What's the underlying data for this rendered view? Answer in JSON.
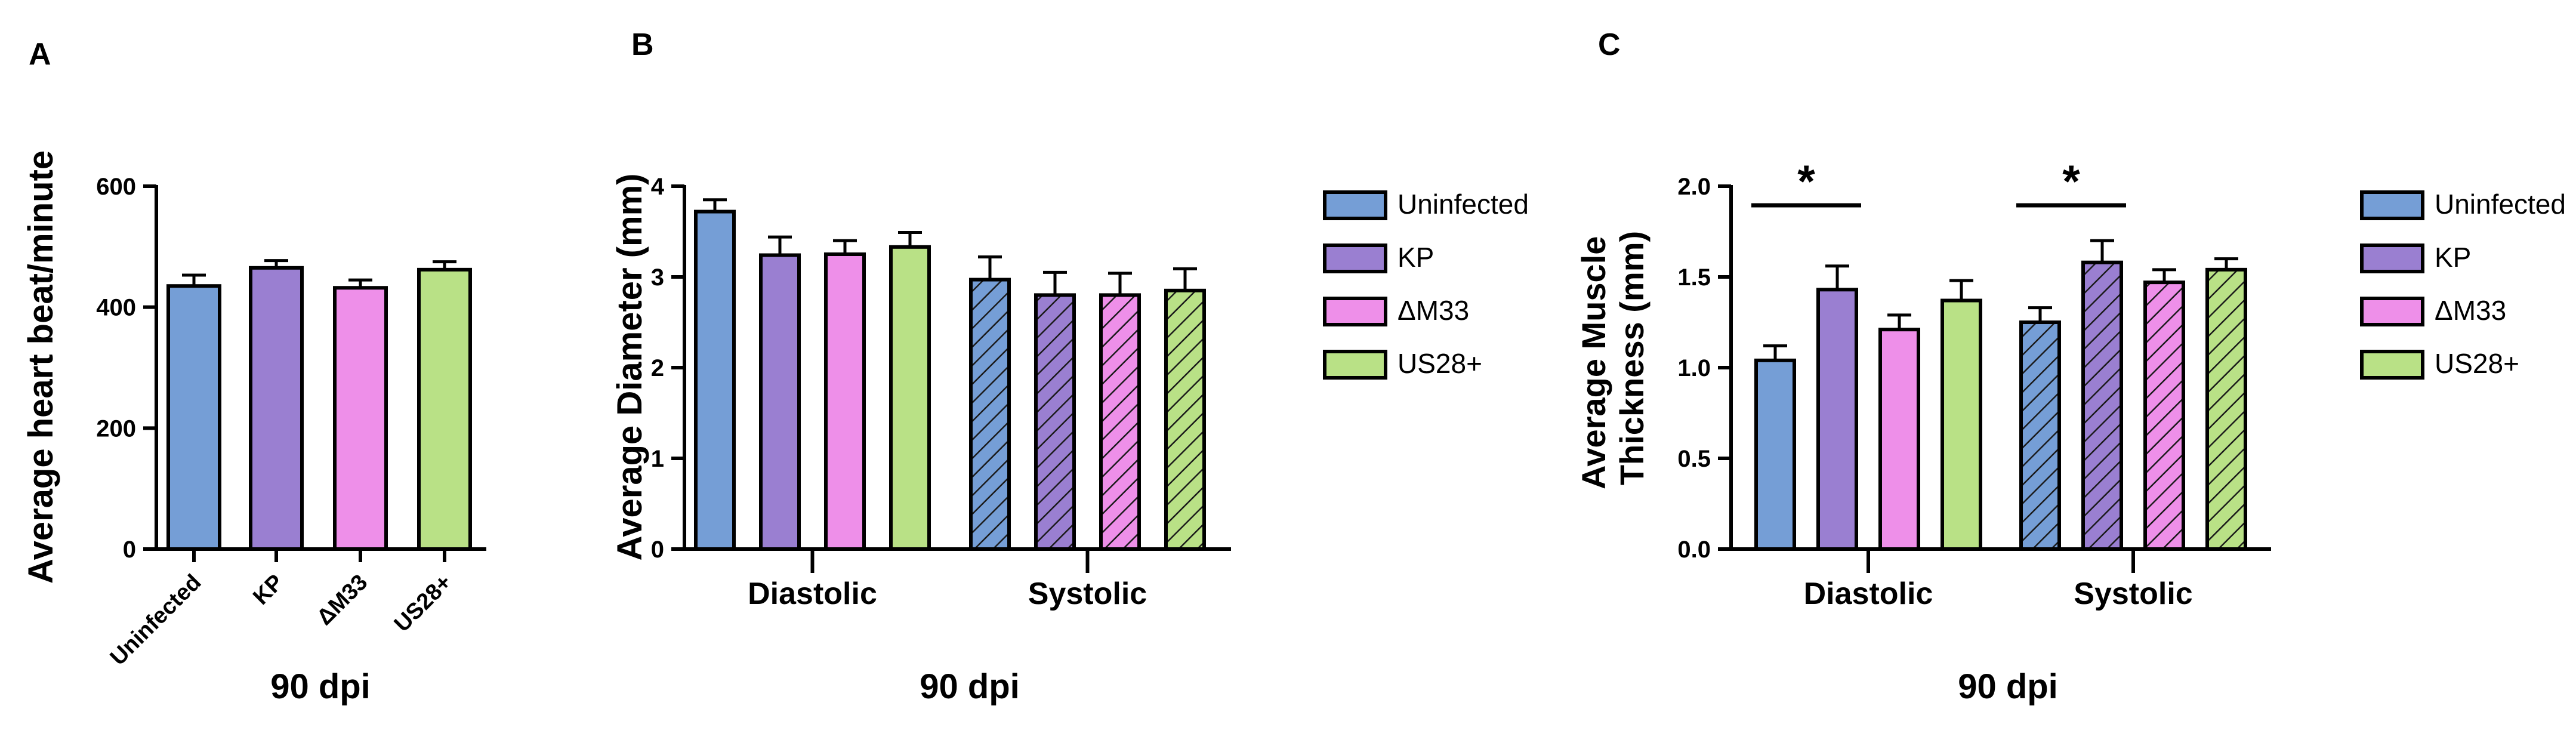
{
  "colors": {
    "uninfected": "#759ed6",
    "kp": "#9a7fd1",
    "dm33": "#ee8fe9",
    "us28": "#b9e186",
    "axis": "#000000",
    "significance": "#000000"
  },
  "chart_data": [
    {
      "panel": "A",
      "type": "bar",
      "title": "",
      "xlabel": "90 dpi",
      "ylabel": "Average heart beat/minute",
      "ylim": [
        0,
        600
      ],
      "yticks": [
        "0",
        "200",
        "400",
        "600"
      ],
      "categories": [
        "Uninfected",
        "KP",
        "ΔM33",
        "US28+"
      ],
      "values": [
        435,
        465,
        432,
        462
      ],
      "errors": [
        18,
        12,
        13,
        13
      ],
      "hatched": [
        false,
        false,
        false,
        false
      ]
    },
    {
      "panel": "B",
      "type": "bar",
      "title": "",
      "xlabel": "90 dpi",
      "ylabel": "Average Diameter (mm)",
      "ylim": [
        0,
        4
      ],
      "yticks": [
        "0",
        "1",
        "2",
        "3",
        "4"
      ],
      "groups": [
        "Diastolic",
        "Systolic"
      ],
      "legend": [
        "Uninfected",
        "KP",
        "ΔM33",
        "US28+"
      ],
      "series": [
        {
          "name": "Uninfected",
          "values": [
            3.72,
            2.97
          ],
          "errors": [
            0.13,
            0.25
          ]
        },
        {
          "name": "KP",
          "values": [
            3.24,
            2.8
          ],
          "errors": [
            0.2,
            0.25
          ]
        },
        {
          "name": "ΔM33",
          "values": [
            3.25,
            2.8
          ],
          "errors": [
            0.15,
            0.24
          ]
        },
        {
          "name": "US28+",
          "values": [
            3.33,
            2.85
          ],
          "errors": [
            0.16,
            0.24
          ]
        }
      ],
      "hatched_groups": [
        "Systolic"
      ]
    },
    {
      "panel": "C",
      "type": "bar",
      "title": "",
      "xlabel": "90 dpi",
      "ylabel_lines": [
        "Average Muscle",
        "Thickness (mm)"
      ],
      "ylim": [
        0,
        2.0
      ],
      "yticks": [
        "0.0",
        "0.5",
        "1.0",
        "1.5",
        "2.0"
      ],
      "groups": [
        "Diastolic",
        "Systolic"
      ],
      "legend": [
        "Uninfected",
        "KP",
        "ΔM33",
        "US28+"
      ],
      "series": [
        {
          "name": "Uninfected",
          "values": [
            1.04,
            1.25
          ],
          "errors": [
            0.08,
            0.08
          ]
        },
        {
          "name": "KP",
          "values": [
            1.43,
            1.58
          ],
          "errors": [
            0.13,
            0.12
          ]
        },
        {
          "name": "ΔM33",
          "values": [
            1.21,
            1.47
          ],
          "errors": [
            0.08,
            0.07
          ]
        },
        {
          "name": "US28+",
          "values": [
            1.37,
            1.54
          ],
          "errors": [
            0.11,
            0.06
          ]
        }
      ],
      "hatched_groups": [
        "Systolic"
      ],
      "significance": [
        {
          "group": "Diastolic",
          "between": [
            "Uninfected",
            "KP"
          ],
          "label": "*"
        },
        {
          "group": "Systolic",
          "between": [
            "Uninfected",
            "KP"
          ],
          "label": "*"
        }
      ]
    }
  ]
}
